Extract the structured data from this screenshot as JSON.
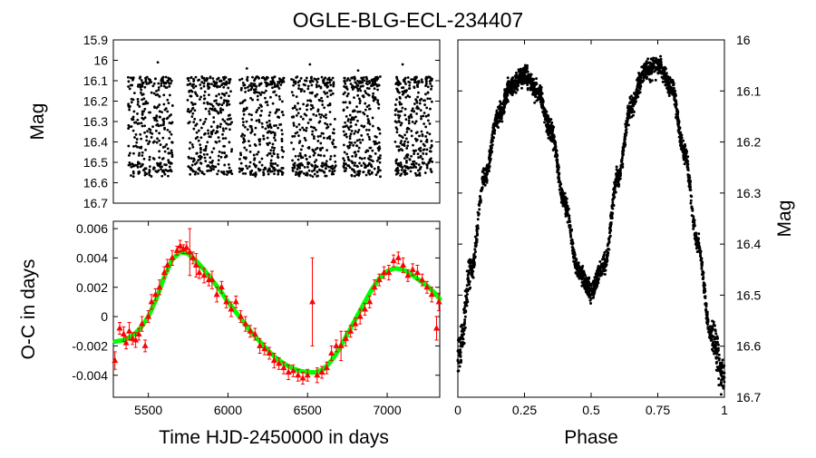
{
  "title": "OGLE-BLG-ECL-234407",
  "chart_data": [
    {
      "id": "lightcurve",
      "type": "scatter",
      "ylabel": "Mag",
      "xlabel": "",
      "xlim": [
        5280,
        5720
      ],
      "ylim": [
        15.9,
        16.7
      ],
      "y_inverted": true,
      "yticks": [
        "15.9",
        "16",
        "16.1",
        "16.2",
        "16.3",
        "16.4",
        "16.5",
        "16.6",
        "16.7"
      ],
      "segments": [
        {
          "x_start": 5300,
          "x_end": 5360
        },
        {
          "x_start": 5380,
          "x_end": 5440
        },
        {
          "x_start": 5450,
          "x_end": 5510
        },
        {
          "x_start": 5520,
          "x_end": 5580
        },
        {
          "x_start": 5590,
          "x_end": 5640
        },
        {
          "x_start": 5660,
          "x_end": 5710
        }
      ],
      "mag_range": [
        16.08,
        16.56
      ],
      "point_color": "#000000"
    },
    {
      "id": "oc",
      "type": "scatter",
      "xlabel": "Time HJD-2450000 in days",
      "ylabel": "O-C in days",
      "xlim": [
        5280,
        7330
      ],
      "ylim": [
        -0.0055,
        0.0065
      ],
      "xticks": [
        "5500",
        "6000",
        "6500",
        "7000"
      ],
      "yticks": [
        "0.006",
        "0.004",
        "0.002",
        "0",
        "-0.002",
        "-0.004"
      ],
      "points_color": "#ff0000",
      "fit_color": "#00ff00",
      "series": [
        {
          "name": "O-C measurements",
          "x": [
            5290,
            5320,
            5345,
            5360,
            5380,
            5400,
            5420,
            5440,
            5460,
            5480,
            5500,
            5520,
            5545,
            5570,
            5600,
            5620,
            5650,
            5680,
            5700,
            5720,
            5740,
            5760,
            5780,
            5800,
            5820,
            5850,
            5880,
            5900,
            5930,
            5960,
            5990,
            6020,
            6050,
            6080,
            6110,
            6140,
            6170,
            6200,
            6230,
            6260,
            6290,
            6320,
            6350,
            6380,
            6410,
            6440,
            6470,
            6500,
            6530,
            6560,
            6590,
            6620,
            6650,
            6680,
            6710,
            6740,
            6770,
            6800,
            6830,
            6860,
            6890,
            6920,
            6950,
            6980,
            7010,
            7040,
            7070,
            7100,
            7130,
            7160,
            7190,
            7220,
            7250,
            7280,
            7310,
            7325
          ],
          "y": [
            -0.003,
            -0.0008,
            -0.0012,
            -0.0018,
            -0.001,
            -0.0015,
            -0.0016,
            -0.0012,
            -0.0005,
            -0.002,
            0.0,
            0.001,
            0.0015,
            0.002,
            0.003,
            0.0035,
            0.004,
            0.0045,
            0.0048,
            0.0046,
            0.0047,
            0.0044,
            0.004,
            0.0035,
            0.003,
            0.0028,
            0.0025,
            0.0025,
            0.0015,
            0.002,
            0.001,
            0.0005,
            0.001,
            0.0,
            -0.0005,
            -0.001,
            -0.0012,
            -0.002,
            -0.0022,
            -0.0025,
            -0.003,
            -0.0032,
            -0.0035,
            -0.0038,
            -0.0037,
            -0.004,
            -0.0042,
            -0.004,
            0.001,
            -0.004,
            -0.0038,
            -0.0035,
            -0.0025,
            -0.002,
            -0.002,
            -0.0015,
            -0.001,
            -0.0005,
            0.0,
            0.0005,
            0.001,
            0.002,
            0.0025,
            0.003,
            0.003,
            0.0038,
            0.004,
            0.0035,
            0.0028,
            0.0032,
            0.003,
            0.0025,
            0.002,
            0.0015,
            -0.0008,
            0.001
          ],
          "err": [
            0.0006,
            0.0004,
            0.0005,
            0.0004,
            0.0006,
            0.0004,
            0.0005,
            0.0004,
            0.0005,
            0.0004,
            0.0004,
            0.0005,
            0.0004,
            0.0005,
            0.0004,
            0.0004,
            0.0005,
            0.0003,
            0.0004,
            0.0003,
            0.0004,
            0.0016,
            0.0004,
            0.0008,
            0.0004,
            0.0005,
            0.0004,
            0.0006,
            0.0005,
            0.0004,
            0.0004,
            0.0005,
            0.0004,
            0.0004,
            0.0005,
            0.0004,
            0.0004,
            0.0005,
            0.0004,
            0.0004,
            0.0005,
            0.0004,
            0.0004,
            0.0005,
            0.0004,
            0.0004,
            0.0004,
            0.0004,
            0.003,
            0.0005,
            0.0004,
            0.0004,
            0.0005,
            0.0004,
            0.001,
            0.0005,
            0.0004,
            0.0004,
            0.0005,
            0.0004,
            0.0004,
            0.0005,
            0.0004,
            0.0004,
            0.0005,
            0.0004,
            0.0004,
            0.0005,
            0.0004,
            0.0004,
            0.0005,
            0.0004,
            0.0004,
            0.0005,
            0.0008,
            0.0006
          ]
        },
        {
          "name": "fit",
          "x": [
            5290,
            5350,
            5400,
            5450,
            5500,
            5550,
            5600,
            5650,
            5700,
            5750,
            5800,
            5850,
            5900,
            5950,
            6000,
            6050,
            6100,
            6150,
            6200,
            6250,
            6300,
            6350,
            6400,
            6450,
            6500,
            6550,
            6600,
            6650,
            6700,
            6750,
            6800,
            6850,
            6900,
            6950,
            7000,
            7050,
            7100,
            7150,
            7200,
            7250,
            7300,
            7330
          ],
          "y": [
            -0.0017,
            -0.0016,
            -0.0013,
            -0.0008,
            0.0,
            0.0012,
            0.0027,
            0.0039,
            0.0044,
            0.0043,
            0.0038,
            0.0032,
            0.0025,
            0.0018,
            0.001,
            0.0003,
            -0.0004,
            -0.0011,
            -0.0017,
            -0.0023,
            -0.0028,
            -0.0032,
            -0.0035,
            -0.0037,
            -0.0038,
            -0.0038,
            -0.0036,
            -0.003,
            -0.0022,
            -0.0012,
            -0.0002,
            0.0008,
            0.0018,
            0.0026,
            0.0031,
            0.0033,
            0.0032,
            0.0029,
            0.0025,
            0.0021,
            0.0016,
            0.0012
          ]
        }
      ]
    },
    {
      "id": "phased",
      "type": "scatter",
      "xlabel": "Phase",
      "ylabel": "Mag",
      "xlim": [
        0,
        1
      ],
      "ylim": [
        16.0,
        16.7
      ],
      "y_inverted": true,
      "xticks": [
        "0",
        "0.25",
        "0.5",
        "0.75",
        "1"
      ],
      "yticks": [
        "16",
        "16.1",
        "16.2",
        "16.3",
        "16.4",
        "16.5",
        "16.6",
        "16.7"
      ],
      "curve": {
        "phase": [
          0.0,
          0.05,
          0.1,
          0.15,
          0.2,
          0.25,
          0.3,
          0.35,
          0.4,
          0.45,
          0.5,
          0.55,
          0.6,
          0.65,
          0.7,
          0.75,
          0.8,
          0.85,
          0.9,
          0.95,
          1.0
        ],
        "mag": [
          16.63,
          16.45,
          16.27,
          16.15,
          16.09,
          16.07,
          16.1,
          16.18,
          16.32,
          16.45,
          16.49,
          16.44,
          16.27,
          16.13,
          16.06,
          16.05,
          16.09,
          16.22,
          16.4,
          16.58,
          16.66
        ]
      },
      "point_color": "#000000"
    }
  ]
}
